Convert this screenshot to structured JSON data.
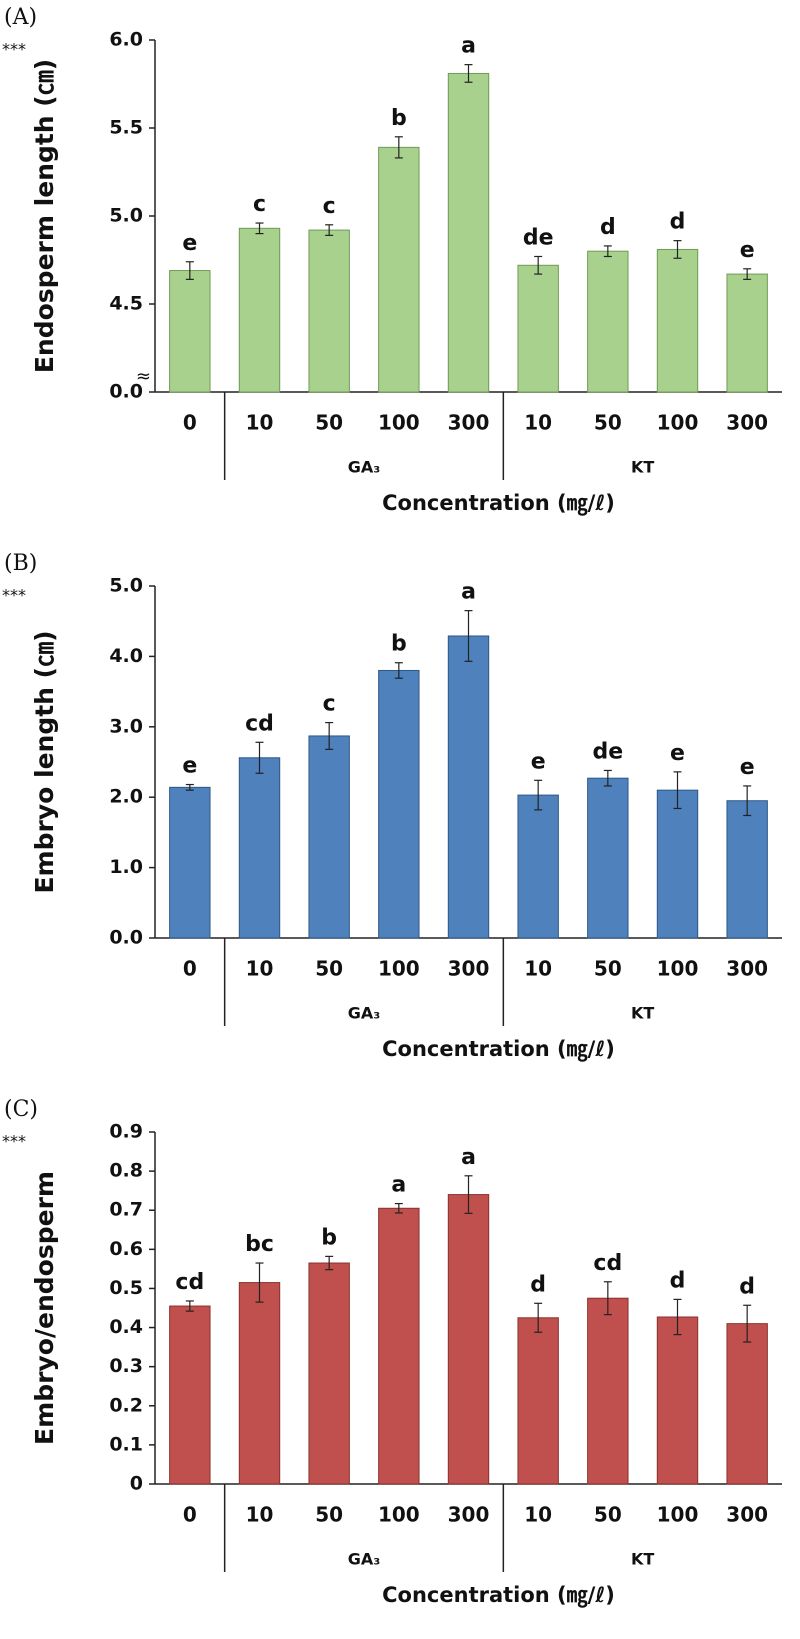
{
  "chart_data": [
    {
      "type": "bar",
      "panel_label": "(A)",
      "significance": "***",
      "ylabel": "Endosperm length (㎝)",
      "xlabel": "Concentration (㎎/ℓ)",
      "categories": [
        "0",
        "10",
        "50",
        "100",
        "300",
        "10",
        "50",
        "100",
        "300"
      ],
      "category_groups": [
        null,
        "GA₃",
        "GA₃",
        "GA₃",
        "GA₃",
        "KT",
        "KT",
        "KT",
        "KT"
      ],
      "values": [
        4.69,
        4.93,
        4.92,
        5.39,
        5.81,
        4.72,
        4.8,
        4.81,
        4.67
      ],
      "errors": [
        0.05,
        0.03,
        0.03,
        0.06,
        0.05,
        0.05,
        0.03,
        0.05,
        0.03
      ],
      "labels": [
        "e",
        "c",
        "c",
        "b",
        "a",
        "de",
        "d",
        "d",
        "e"
      ],
      "color": "#a9d18e",
      "edge_color": "#6f9a55",
      "ylim": [
        0,
        6.0
      ],
      "axis_break": {
        "from": 0,
        "to": 4,
        "label": "≈"
      },
      "yticks": [
        {
          "value": 0,
          "label": "0.0"
        },
        {
          "value": 4.5,
          "label": "4.5"
        },
        {
          "value": 5.0,
          "label": "5.0"
        },
        {
          "value": 5.5,
          "label": "5.5"
        },
        {
          "value": 6.0,
          "label": "6.0"
        }
      ]
    },
    {
      "type": "bar",
      "panel_label": "(B)",
      "significance": "***",
      "ylabel": "Embryo length (㎝)",
      "xlabel": "Concentration (㎎/ℓ)",
      "categories": [
        "0",
        "10",
        "50",
        "100",
        "300",
        "10",
        "50",
        "100",
        "300"
      ],
      "category_groups": [
        null,
        "GA₃",
        "GA₃",
        "GA₃",
        "GA₃",
        "KT",
        "KT",
        "KT",
        "KT"
      ],
      "values": [
        2.14,
        2.56,
        2.87,
        3.8,
        4.29,
        2.03,
        2.27,
        2.1,
        1.95
      ],
      "errors": [
        0.04,
        0.22,
        0.19,
        0.11,
        0.36,
        0.21,
        0.11,
        0.26,
        0.21
      ],
      "labels": [
        "e",
        "cd",
        "c",
        "b",
        "a",
        "e",
        "de",
        "e",
        "e"
      ],
      "color": "#4f81bd",
      "edge_color": "#2d5886",
      "ylim": [
        0,
        5.0
      ],
      "yticks": [
        {
          "value": 0,
          "label": "0.0"
        },
        {
          "value": 1,
          "label": "1.0"
        },
        {
          "value": 2,
          "label": "2.0"
        },
        {
          "value": 3,
          "label": "3.0"
        },
        {
          "value": 4,
          "label": "4.0"
        },
        {
          "value": 5,
          "label": "5.0"
        }
      ]
    },
    {
      "type": "bar",
      "panel_label": "(C)",
      "significance": "***",
      "ylabel": "Embryo/endosperm",
      "xlabel": "Concentration (㎎/ℓ)",
      "categories": [
        "0",
        "10",
        "50",
        "100",
        "300",
        "10",
        "50",
        "100",
        "300"
      ],
      "category_groups": [
        null,
        "GA₃",
        "GA₃",
        "GA₃",
        "GA₃",
        "KT",
        "KT",
        "KT",
        "KT"
      ],
      "values": [
        0.455,
        0.515,
        0.565,
        0.705,
        0.74,
        0.425,
        0.475,
        0.427,
        0.41
      ],
      "errors": [
        0.013,
        0.05,
        0.017,
        0.012,
        0.048,
        0.037,
        0.042,
        0.045,
        0.047
      ],
      "labels": [
        "cd",
        "bc",
        "b",
        "a",
        "a",
        "d",
        "cd",
        "d",
        "d"
      ],
      "color": "#c0504d",
      "edge_color": "#8a312e",
      "ylim": [
        0,
        0.9
      ],
      "yticks": [
        0,
        0.1,
        0.2,
        0.3,
        0.4,
        0.5,
        0.6,
        0.7,
        0.8,
        0.9
      ]
    }
  ]
}
